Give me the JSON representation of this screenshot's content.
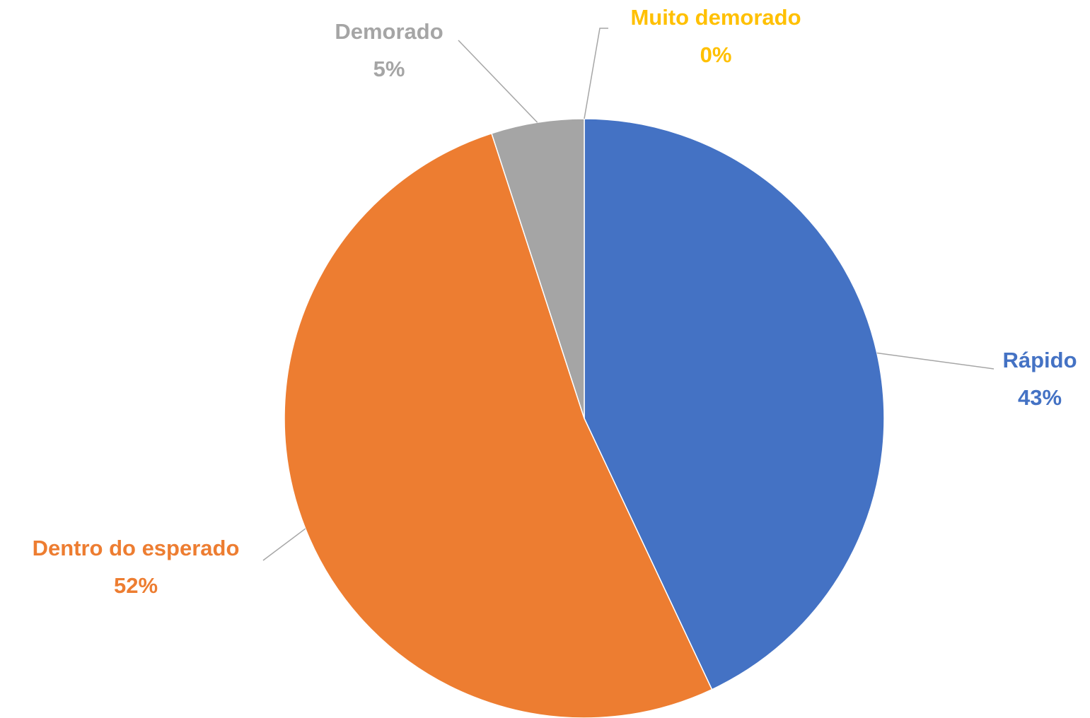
{
  "chart_data": {
    "type": "pie",
    "categories": [
      "Rápido",
      "Dentro do esperado",
      "Demorado",
      "Muito demorado"
    ],
    "values": [
      43,
      52,
      5,
      0
    ],
    "value_labels": [
      "43%",
      "52%",
      "5%",
      "0%"
    ],
    "colors": [
      "#4472c4",
      "#ed7d31",
      "#a5a5a5",
      "#ffc000"
    ]
  }
}
